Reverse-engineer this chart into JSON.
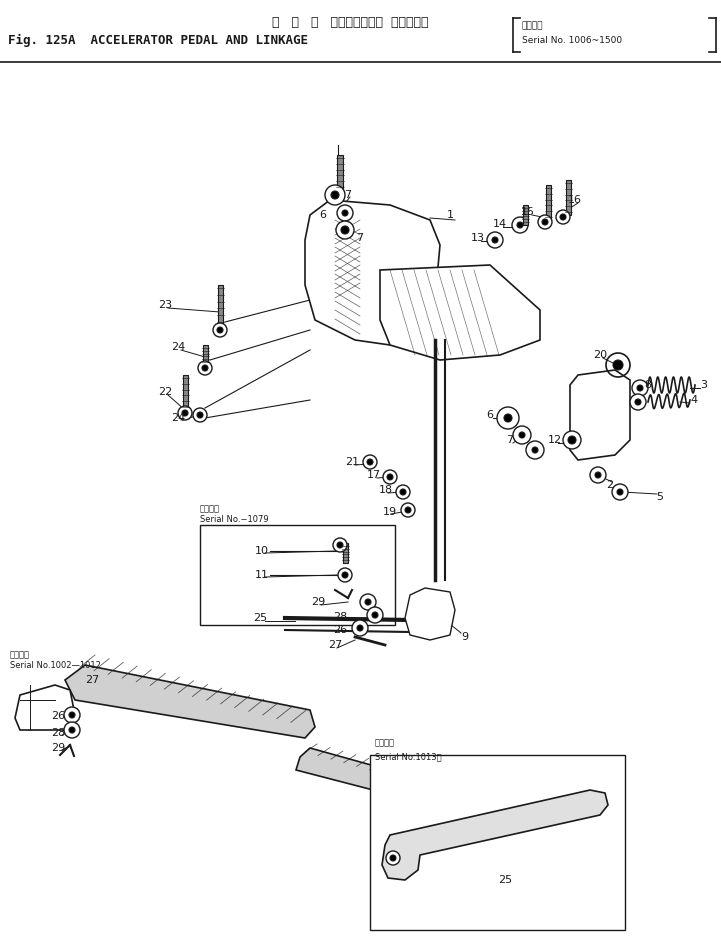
{
  "title_jp": "ア   ク   セ   ルペダルおよび  リンケージ",
  "title_en": "Fig. 125A  ACCELERATOR PEDAL AND LINKAGE",
  "title_serial_jp": "適用号機",
  "title_serial_en": "Serial No. 1006~1500",
  "bg_color": "#ffffff",
  "lc": "#1a1a1a",
  "tc": "#1a1a1a",
  "fig_width": 7.21,
  "fig_height": 9.49
}
